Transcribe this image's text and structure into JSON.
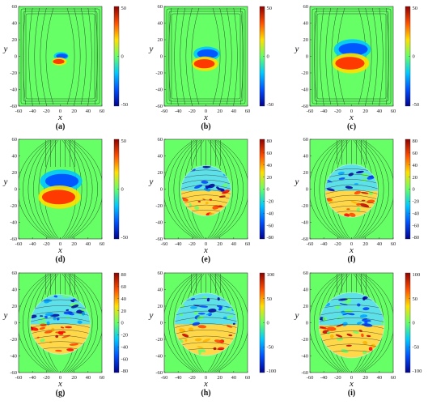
{
  "chart_data": {
    "type": "heatmap",
    "xlabel": "x",
    "ylabel": "y",
    "xticks": [
      -60,
      -40,
      -20,
      0,
      20,
      40,
      60
    ],
    "yticks": [
      60,
      40,
      20,
      0,
      -20,
      -40,
      -60
    ],
    "xlim": [
      -60,
      60
    ],
    "ylim": [
      -60,
      60
    ],
    "colormap": [
      "#00008f",
      "#0050ff",
      "#00c8ff",
      "#66ff66",
      "#ffe000",
      "#ff5000",
      "#8f0000"
    ],
    "background_color": "#66ff66",
    "panels": [
      {
        "label": "(a)",
        "colorbar_ticks": [
          "50",
          "0",
          "-50"
        ],
        "radius": 11,
        "cy": -3,
        "pattern": "dipole",
        "streamlines": "box"
      },
      {
        "label": "(b)",
        "colorbar_ticks": [
          "50",
          "0",
          "-50"
        ],
        "radius": 20,
        "cy": -3,
        "pattern": "dipole",
        "streamlines": "box"
      },
      {
        "label": "(c)",
        "colorbar_ticks": [
          "50",
          "0",
          "-50"
        ],
        "radius": 28,
        "cy": 0,
        "pattern": "dipole",
        "streamlines": "box"
      },
      {
        "label": "(d)",
        "colorbar_ticks": [
          "50",
          "0",
          "-50"
        ],
        "radius": 32,
        "cy": 0,
        "pattern": "dipole",
        "streamlines": "arch"
      },
      {
        "label": "(e)",
        "colorbar_ticks": [
          "80",
          "60",
          "40",
          "20",
          "0",
          "-20",
          "-40",
          "-60",
          "-80"
        ],
        "radius": 36,
        "cy": -2,
        "pattern": "diffuse",
        "streamlines": "arch"
      },
      {
        "label": "(f)",
        "colorbar_ticks": [
          "80",
          "60",
          "40",
          "20",
          "0",
          "-20",
          "-40",
          "-60",
          "-80"
        ],
        "radius": 38,
        "cy": -2,
        "pattern": "diffuse",
        "streamlines": "arch"
      },
      {
        "label": "(g)",
        "colorbar_ticks": [
          "80",
          "60",
          "40",
          "20",
          "0",
          "-20",
          "-40",
          "-60",
          "-80"
        ],
        "radius": 43,
        "cy": -2,
        "pattern": "turbulent",
        "streamlines": "arch"
      },
      {
        "label": "(h)",
        "colorbar_ticks": [
          "100",
          "50",
          "0",
          "-50",
          "-100"
        ],
        "radius": 45,
        "cy": -2,
        "pattern": "turbulent",
        "streamlines": "arch"
      },
      {
        "label": "(i)",
        "colorbar_ticks": [
          "100",
          "50",
          "0",
          "-50",
          "-100"
        ],
        "radius": 47,
        "cy": -3,
        "pattern": "turbulent",
        "streamlines": "arch"
      }
    ]
  }
}
